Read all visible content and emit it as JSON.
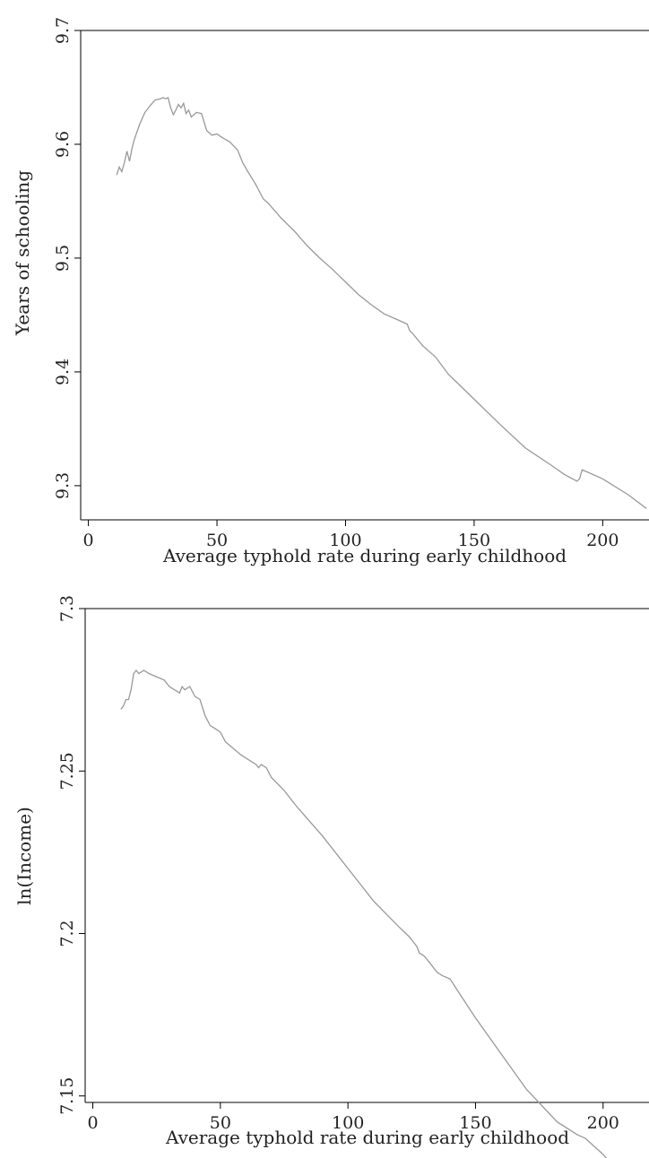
{
  "chart_data": [
    {
      "type": "line",
      "xlabel": "Average typhold rate during early childhood",
      "ylabel": "Years of schooling",
      "xlim": [
        -3,
        218
      ],
      "ylim": [
        9.27,
        9.7
      ],
      "xticks": [
        0,
        50,
        100,
        150,
        200
      ],
      "yticks": [
        9.3,
        9.4,
        9.5,
        9.6,
        9.7
      ],
      "ytick_labels": [
        "9.3",
        "9.4",
        "9.5",
        "9.6",
        "9.7"
      ],
      "grid": false,
      "line_color": "#999999",
      "series": [
        {
          "x": [
            11,
            12,
            13,
            14,
            15,
            16,
            17,
            18,
            20,
            22,
            24,
            26,
            28,
            29,
            30,
            31,
            32,
            33,
            34,
            35,
            36,
            37,
            38,
            39,
            40,
            42,
            44,
            46,
            48,
            50,
            52,
            55,
            58,
            60,
            62,
            65,
            68,
            70,
            75,
            80,
            85,
            90,
            95,
            100,
            105,
            110,
            115,
            120,
            124,
            125,
            126,
            130,
            135,
            140,
            150,
            160,
            170,
            180,
            185,
            190,
            191,
            192,
            195,
            200,
            210,
            217
          ],
          "y": [
            9.573,
            9.58,
            9.576,
            9.584,
            9.594,
            9.585,
            9.597,
            9.605,
            9.618,
            9.628,
            9.634,
            9.639,
            9.64,
            9.641,
            9.64,
            9.641,
            9.632,
            9.626,
            9.63,
            9.635,
            9.632,
            9.636,
            9.627,
            9.63,
            9.624,
            9.628,
            9.627,
            9.612,
            9.608,
            9.609,
            9.606,
            9.602,
            9.595,
            9.584,
            9.576,
            9.565,
            9.552,
            9.548,
            9.535,
            9.524,
            9.511,
            9.5,
            9.49,
            9.479,
            9.468,
            9.459,
            9.451,
            9.446,
            9.442,
            9.436,
            9.434,
            9.423,
            9.413,
            9.398,
            9.376,
            9.354,
            9.333,
            9.318,
            9.31,
            9.304,
            9.306,
            9.314,
            9.311,
            9.306,
            9.292,
            9.28
          ]
        }
      ]
    },
    {
      "type": "line",
      "xlabel": "Average typhold rate during early childhood",
      "ylabel": "ln(Income)",
      "xlim": [
        -3,
        218
      ],
      "ylim": [
        7.148,
        7.3
      ],
      "xticks": [
        0,
        50,
        100,
        150,
        200
      ],
      "yticks": [
        7.15,
        7.2,
        7.25,
        7.3
      ],
      "ytick_labels": [
        "7.15",
        "7.2",
        "7.25",
        "7.3"
      ],
      "grid": false,
      "line_color": "#999999",
      "series": [
        {
          "x": [
            11,
            12,
            13,
            14,
            15,
            16,
            17,
            18,
            20,
            22,
            25,
            28,
            30,
            32,
            34,
            35,
            36,
            38,
            40,
            42,
            44,
            46,
            48,
            50,
            52,
            55,
            58,
            60,
            62,
            64,
            65,
            66,
            68,
            70,
            75,
            80,
            90,
            100,
            110,
            115,
            120,
            124,
            126,
            127,
            128,
            130,
            133,
            135,
            137,
            140,
            145,
            150,
            160,
            170,
            182,
            190,
            193,
            200,
            210,
            217
          ],
          "y": [
            7.269,
            7.27,
            7.272,
            7.272,
            7.275,
            7.28,
            7.281,
            7.28,
            7.281,
            7.28,
            7.279,
            7.278,
            7.276,
            7.275,
            7.274,
            7.276,
            7.275,
            7.276,
            7.273,
            7.272,
            7.267,
            7.264,
            7.263,
            7.262,
            7.259,
            7.257,
            7.255,
            7.254,
            7.253,
            7.252,
            7.251,
            7.252,
            7.251,
            7.248,
            7.244,
            7.239,
            7.23,
            7.22,
            7.21,
            7.206,
            7.202,
            7.199,
            7.197,
            7.196,
            7.194,
            7.193,
            7.19,
            7.188,
            7.187,
            7.186,
            7.18,
            7.174,
            7.163,
            7.152,
            7.142,
            7.138,
            7.137,
            7.132,
            7.123,
            7.118
          ]
        }
      ]
    }
  ]
}
